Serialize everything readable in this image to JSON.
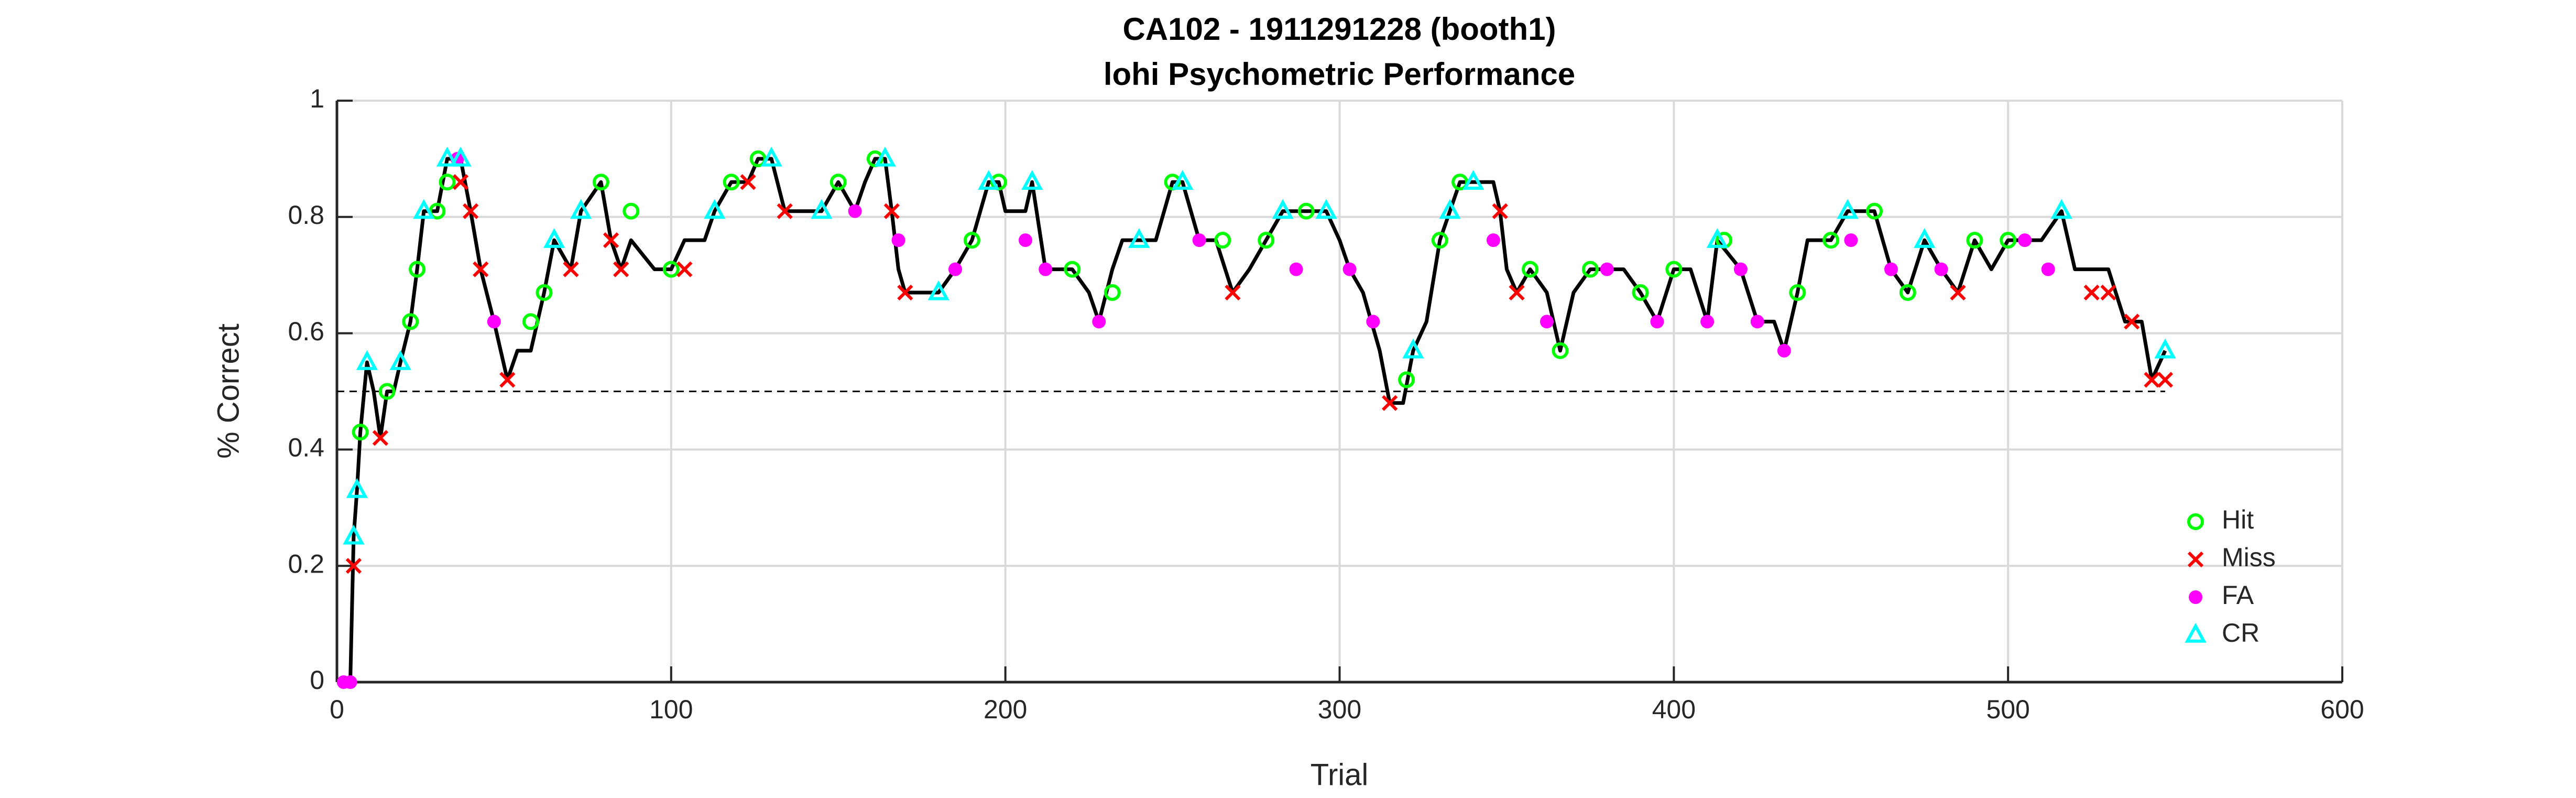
{
  "chart_data": {
    "type": "scatter",
    "title": [
      "CA102 - 1911291228 (booth1)",
      "lohi Psychometric Performance"
    ],
    "x_label": "Trial",
    "y_label": "% Correct",
    "xlim": [
      0,
      600
    ],
    "xticks": [
      0,
      100,
      200,
      300,
      400,
      500,
      600
    ],
    "ylim": [
      0,
      1
    ],
    "yticks": [
      0,
      0.2,
      0.4,
      0.6,
      0.8,
      1
    ],
    "grid": true,
    "legend": "southeast",
    "reference_line": 0.5,
    "line": {
      "color": "#000000",
      "x": [
        0,
        4,
        5,
        6,
        7,
        9,
        11,
        13,
        15,
        17,
        19,
        22,
        24,
        26,
        30,
        33,
        37,
        40,
        43,
        47,
        51,
        54,
        58,
        62,
        65,
        70,
        73,
        79,
        82,
        85,
        88,
        95,
        100,
        104,
        110,
        113,
        118,
        123,
        126,
        130,
        134,
        145,
        150,
        155,
        158,
        161,
        164,
        166,
        168,
        170,
        180,
        185,
        190,
        195,
        198,
        200,
        206,
        208,
        212,
        220,
        225,
        228,
        232,
        235,
        240,
        245,
        250,
        253,
        258,
        263,
        268,
        273,
        278,
        283,
        290,
        296,
        300,
        303,
        307,
        312,
        315,
        319,
        322,
        326,
        330,
        333,
        336,
        346,
        348,
        350,
        353,
        357,
        362,
        366,
        370,
        375,
        385,
        390,
        395,
        400,
        405,
        410,
        413,
        420,
        425,
        430,
        433,
        437,
        440,
        447,
        452,
        460,
        465,
        470,
        475,
        480,
        485,
        490,
        495,
        500,
        510,
        516,
        520,
        530,
        535,
        540,
        543,
        547
      ],
      "values": [
        0,
        0,
        0.25,
        0.33,
        0.43,
        0.55,
        0.5,
        0.42,
        0.5,
        0.5,
        0.55,
        0.62,
        0.71,
        0.81,
        0.81,
        0.9,
        0.9,
        0.81,
        0.71,
        0.62,
        0.52,
        0.57,
        0.57,
        0.67,
        0.76,
        0.71,
        0.81,
        0.86,
        0.76,
        0.71,
        0.76,
        0.71,
        0.71,
        0.76,
        0.76,
        0.81,
        0.86,
        0.86,
        0.9,
        0.9,
        0.81,
        0.81,
        0.86,
        0.81,
        0.86,
        0.9,
        0.9,
        0.81,
        0.71,
        0.67,
        0.67,
        0.71,
        0.76,
        0.86,
        0.86,
        0.81,
        0.81,
        0.86,
        0.71,
        0.71,
        0.67,
        0.62,
        0.71,
        0.76,
        0.76,
        0.76,
        0.86,
        0.86,
        0.76,
        0.76,
        0.67,
        0.71,
        0.76,
        0.81,
        0.81,
        0.81,
        0.76,
        0.71,
        0.67,
        0.57,
        0.48,
        0.48,
        0.57,
        0.62,
        0.76,
        0.81,
        0.86,
        0.86,
        0.81,
        0.71,
        0.67,
        0.71,
        0.67,
        0.57,
        0.67,
        0.71,
        0.71,
        0.67,
        0.62,
        0.71,
        0.71,
        0.62,
        0.76,
        0.71,
        0.62,
        0.62,
        0.57,
        0.67,
        0.76,
        0.76,
        0.81,
        0.81,
        0.71,
        0.67,
        0.76,
        0.71,
        0.67,
        0.76,
        0.71,
        0.76,
        0.76,
        0.81,
        0.71,
        0.71,
        0.62,
        0.62,
        0.52,
        0.57
      ]
    },
    "series": [
      {
        "name": "Hit",
        "color": "#00ff00",
        "marker": "circle",
        "x": [
          7,
          15,
          22,
          24,
          30,
          33,
          58,
          62,
          79,
          88,
          100,
          118,
          126,
          150,
          161,
          190,
          198,
          220,
          232,
          250,
          265,
          278,
          290,
          320,
          330,
          336,
          357,
          366,
          375,
          390,
          400,
          415,
          437,
          447,
          460,
          470,
          490,
          500
        ],
        "values": [
          0.43,
          0.5,
          0.62,
          0.71,
          0.81,
          0.86,
          0.62,
          0.67,
          0.86,
          0.81,
          0.71,
          0.86,
          0.9,
          0.86,
          0.9,
          0.76,
          0.86,
          0.71,
          0.67,
          0.86,
          0.76,
          0.76,
          0.81,
          0.52,
          0.76,
          0.86,
          0.71,
          0.57,
          0.71,
          0.67,
          0.71,
          0.76,
          0.67,
          0.76,
          0.81,
          0.67,
          0.76,
          0.76
        ]
      },
      {
        "name": "Miss",
        "color": "#ff0000",
        "marker": "x",
        "x": [
          5,
          13,
          37,
          40,
          43,
          51,
          70,
          82,
          85,
          104,
          123,
          134,
          166,
          170,
          268,
          315,
          348,
          353,
          485,
          525,
          530,
          537,
          543,
          547
        ],
        "values": [
          0.2,
          0.42,
          0.86,
          0.81,
          0.71,
          0.52,
          0.71,
          0.76,
          0.71,
          0.71,
          0.86,
          0.81,
          0.81,
          0.67,
          0.67,
          0.48,
          0.81,
          0.67,
          0.67,
          0.67,
          0.67,
          0.62,
          0.52,
          0.52
        ]
      },
      {
        "name": "FA",
        "color": "#ff00ff",
        "marker": "dot",
        "x": [
          2,
          4,
          36,
          47,
          155,
          168,
          185,
          206,
          212,
          228,
          258,
          287,
          303,
          310,
          346,
          362,
          380,
          395,
          410,
          420,
          425,
          433,
          453,
          465,
          480,
          505,
          512
        ],
        "values": [
          0,
          0,
          0.9,
          0.62,
          0.81,
          0.76,
          0.71,
          0.76,
          0.71,
          0.62,
          0.76,
          0.71,
          0.71,
          0.62,
          0.76,
          0.62,
          0.71,
          0.62,
          0.62,
          0.71,
          0.62,
          0.57,
          0.76,
          0.71,
          0.71,
          0.76,
          0.71
        ]
      },
      {
        "name": "CR",
        "color": "#00ffff",
        "marker": "triangle",
        "x": [
          5,
          6,
          9,
          19,
          26,
          33,
          37,
          65,
          73,
          113,
          130,
          145,
          164,
          180,
          195,
          208,
          240,
          253,
          283,
          296,
          322,
          333,
          340,
          413,
          452,
          475,
          516,
          547
        ],
        "values": [
          0.25,
          0.33,
          0.55,
          0.55,
          0.81,
          0.9,
          0.9,
          0.76,
          0.81,
          0.81,
          0.9,
          0.81,
          0.9,
          0.67,
          0.86,
          0.86,
          0.76,
          0.86,
          0.81,
          0.81,
          0.57,
          0.81,
          0.86,
          0.76,
          0.81,
          0.76,
          0.81,
          0.57
        ]
      }
    ]
  }
}
